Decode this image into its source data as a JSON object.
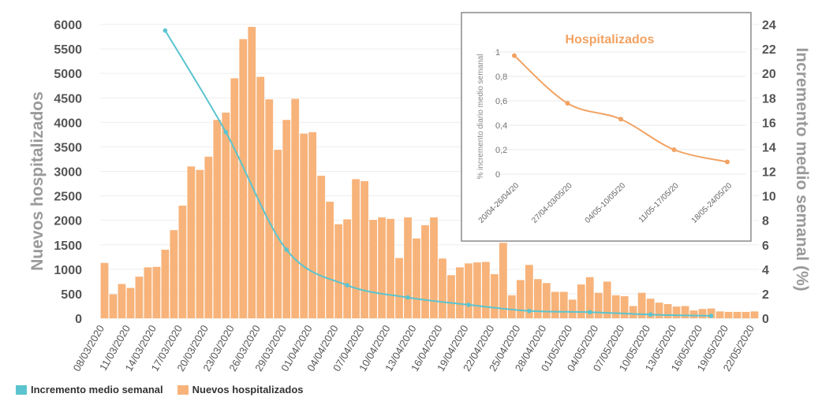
{
  "colors": {
    "line": "#5bc4cf",
    "bar": "#f7b37a",
    "inset_line": "#f2a262",
    "axis_text": "#9a9a9a",
    "tick_text": "#555555"
  },
  "chart_data": [
    {
      "type": "bar",
      "title": "",
      "ylabel": "Nuevos hospitalizados",
      "y2label": "Incremento medio semanal (%)",
      "ylim": [
        0,
        6000
      ],
      "y2lim": [
        0,
        24
      ],
      "yticks": [
        0,
        500,
        1000,
        1500,
        2000,
        2500,
        3000,
        3500,
        4000,
        4500,
        5000,
        5500,
        6000
      ],
      "y2ticks": [
        0,
        2,
        4,
        6,
        8,
        10,
        12,
        14,
        16,
        18,
        20,
        22,
        24
      ],
      "categories": [
        "08/03/2020",
        "09/03/2020",
        "10/03/2020",
        "11/03/2020",
        "12/03/2020",
        "13/03/2020",
        "14/03/2020",
        "15/03/2020",
        "16/03/2020",
        "17/03/2020",
        "18/03/2020",
        "19/03/2020",
        "20/03/2020",
        "21/03/2020",
        "22/03/2020",
        "23/03/2020",
        "24/03/2020",
        "25/03/2020",
        "26/03/2020",
        "27/03/2020",
        "28/03/2020",
        "29/03/2020",
        "30/03/2020",
        "31/03/2020",
        "01/04/2020",
        "02/04/2020",
        "03/04/2020",
        "04/04/2020",
        "05/04/2020",
        "06/04/2020",
        "07/04/2020",
        "08/04/2020",
        "09/04/2020",
        "10/04/2020",
        "11/04/2020",
        "12/04/2020",
        "13/04/2020",
        "14/04/2020",
        "15/04/2020",
        "16/04/2020",
        "17/04/2020",
        "18/04/2020",
        "19/04/2020",
        "20/04/2020",
        "21/04/2020",
        "22/04/2020",
        "23/04/2020",
        "24/04/2020",
        "25/04/2020",
        "26/04/2020",
        "27/04/2020",
        "28/04/2020",
        "29/04/2020",
        "30/04/2020",
        "01/05/2020",
        "02/05/2020",
        "03/05/2020",
        "04/05/2020",
        "05/05/2020",
        "06/05/2020",
        "07/05/2020",
        "08/05/2020",
        "09/05/2020",
        "10/05/2020",
        "11/05/2020",
        "12/05/2020",
        "13/05/2020",
        "14/05/2020",
        "15/05/2020",
        "16/05/2020",
        "17/05/2020",
        "18/05/2020",
        "19/05/2020",
        "20/05/2020",
        "21/05/2020",
        "22/05/2020"
      ],
      "xticklabels": [
        "08/03/2020",
        "11/03/2020",
        "14/03/2020",
        "17/03/2020",
        "20/03/2020",
        "23/03/2020",
        "26/03/2020",
        "29/03/2020",
        "01/04/2020",
        "04/04/2020",
        "07/04/2020",
        "10/04/2020",
        "13/04/2020",
        "16/04/2020",
        "19/04/2020",
        "22/04/2020",
        "25/04/2020",
        "28/04/2020",
        "01/05/2020",
        "04/05/2020",
        "07/05/2020",
        "10/05/2020",
        "13/05/2020",
        "16/05/2020",
        "19/05/2020",
        "22/05/2020"
      ],
      "series": [
        {
          "name": "Nuevos hospitalizados",
          "axis": "left",
          "kind": "bar",
          "values": [
            1130,
            490,
            700,
            620,
            850,
            1040,
            1050,
            1400,
            1800,
            2300,
            3100,
            3030,
            3300,
            4050,
            4200,
            4900,
            5700,
            5950,
            4930,
            4470,
            3440,
            4050,
            4480,
            3770,
            3800,
            2910,
            2380,
            1920,
            2020,
            2840,
            2800,
            2010,
            2060,
            2030,
            1230,
            2060,
            1630,
            1900,
            2060,
            1220,
            880,
            1040,
            1120,
            1140,
            1150,
            900,
            1540,
            470,
            780,
            1090,
            800,
            720,
            540,
            540,
            380,
            690,
            840,
            520,
            750,
            470,
            450,
            250,
            520,
            400,
            320,
            290,
            240,
            250,
            160,
            190,
            200,
            140,
            130,
            130,
            130,
            140
          ]
        },
        {
          "name": "Incremento medio semanal",
          "axis": "right",
          "kind": "line",
          "x": [
            "15/03/2020",
            "22/03/2020",
            "29/03/2020",
            "05/04/2020",
            "12/04/2020",
            "19/04/2020",
            "26/04/2020",
            "03/05/2020",
            "10/05/2020",
            "17/05/2020"
          ],
          "values": [
            23.5,
            15.2,
            5.6,
            2.7,
            1.7,
            1.1,
            0.6,
            0.5,
            0.3,
            0.2
          ]
        }
      ],
      "legend": [
        "Incremento medio semanal",
        "Nuevos hospitalizados"
      ],
      "legend_position": "bottom-left"
    },
    {
      "type": "line",
      "title": "Hospitalizados",
      "ylabel": "% incremento diario medio semanal",
      "ylim": [
        0,
        1
      ],
      "yticks": [
        "0",
        "0,2",
        "0,4",
        "0,6",
        "0,8",
        "1"
      ],
      "categories": [
        "20/04-26/04/20",
        "27/04-03/05/20",
        "04/05-10/05/20",
        "11/05-17/05/20",
        "18/05-24/05/20"
      ],
      "values": [
        0.97,
        0.58,
        0.45,
        0.2,
        0.1
      ],
      "grid": true,
      "position": "top-right inset"
    }
  ]
}
